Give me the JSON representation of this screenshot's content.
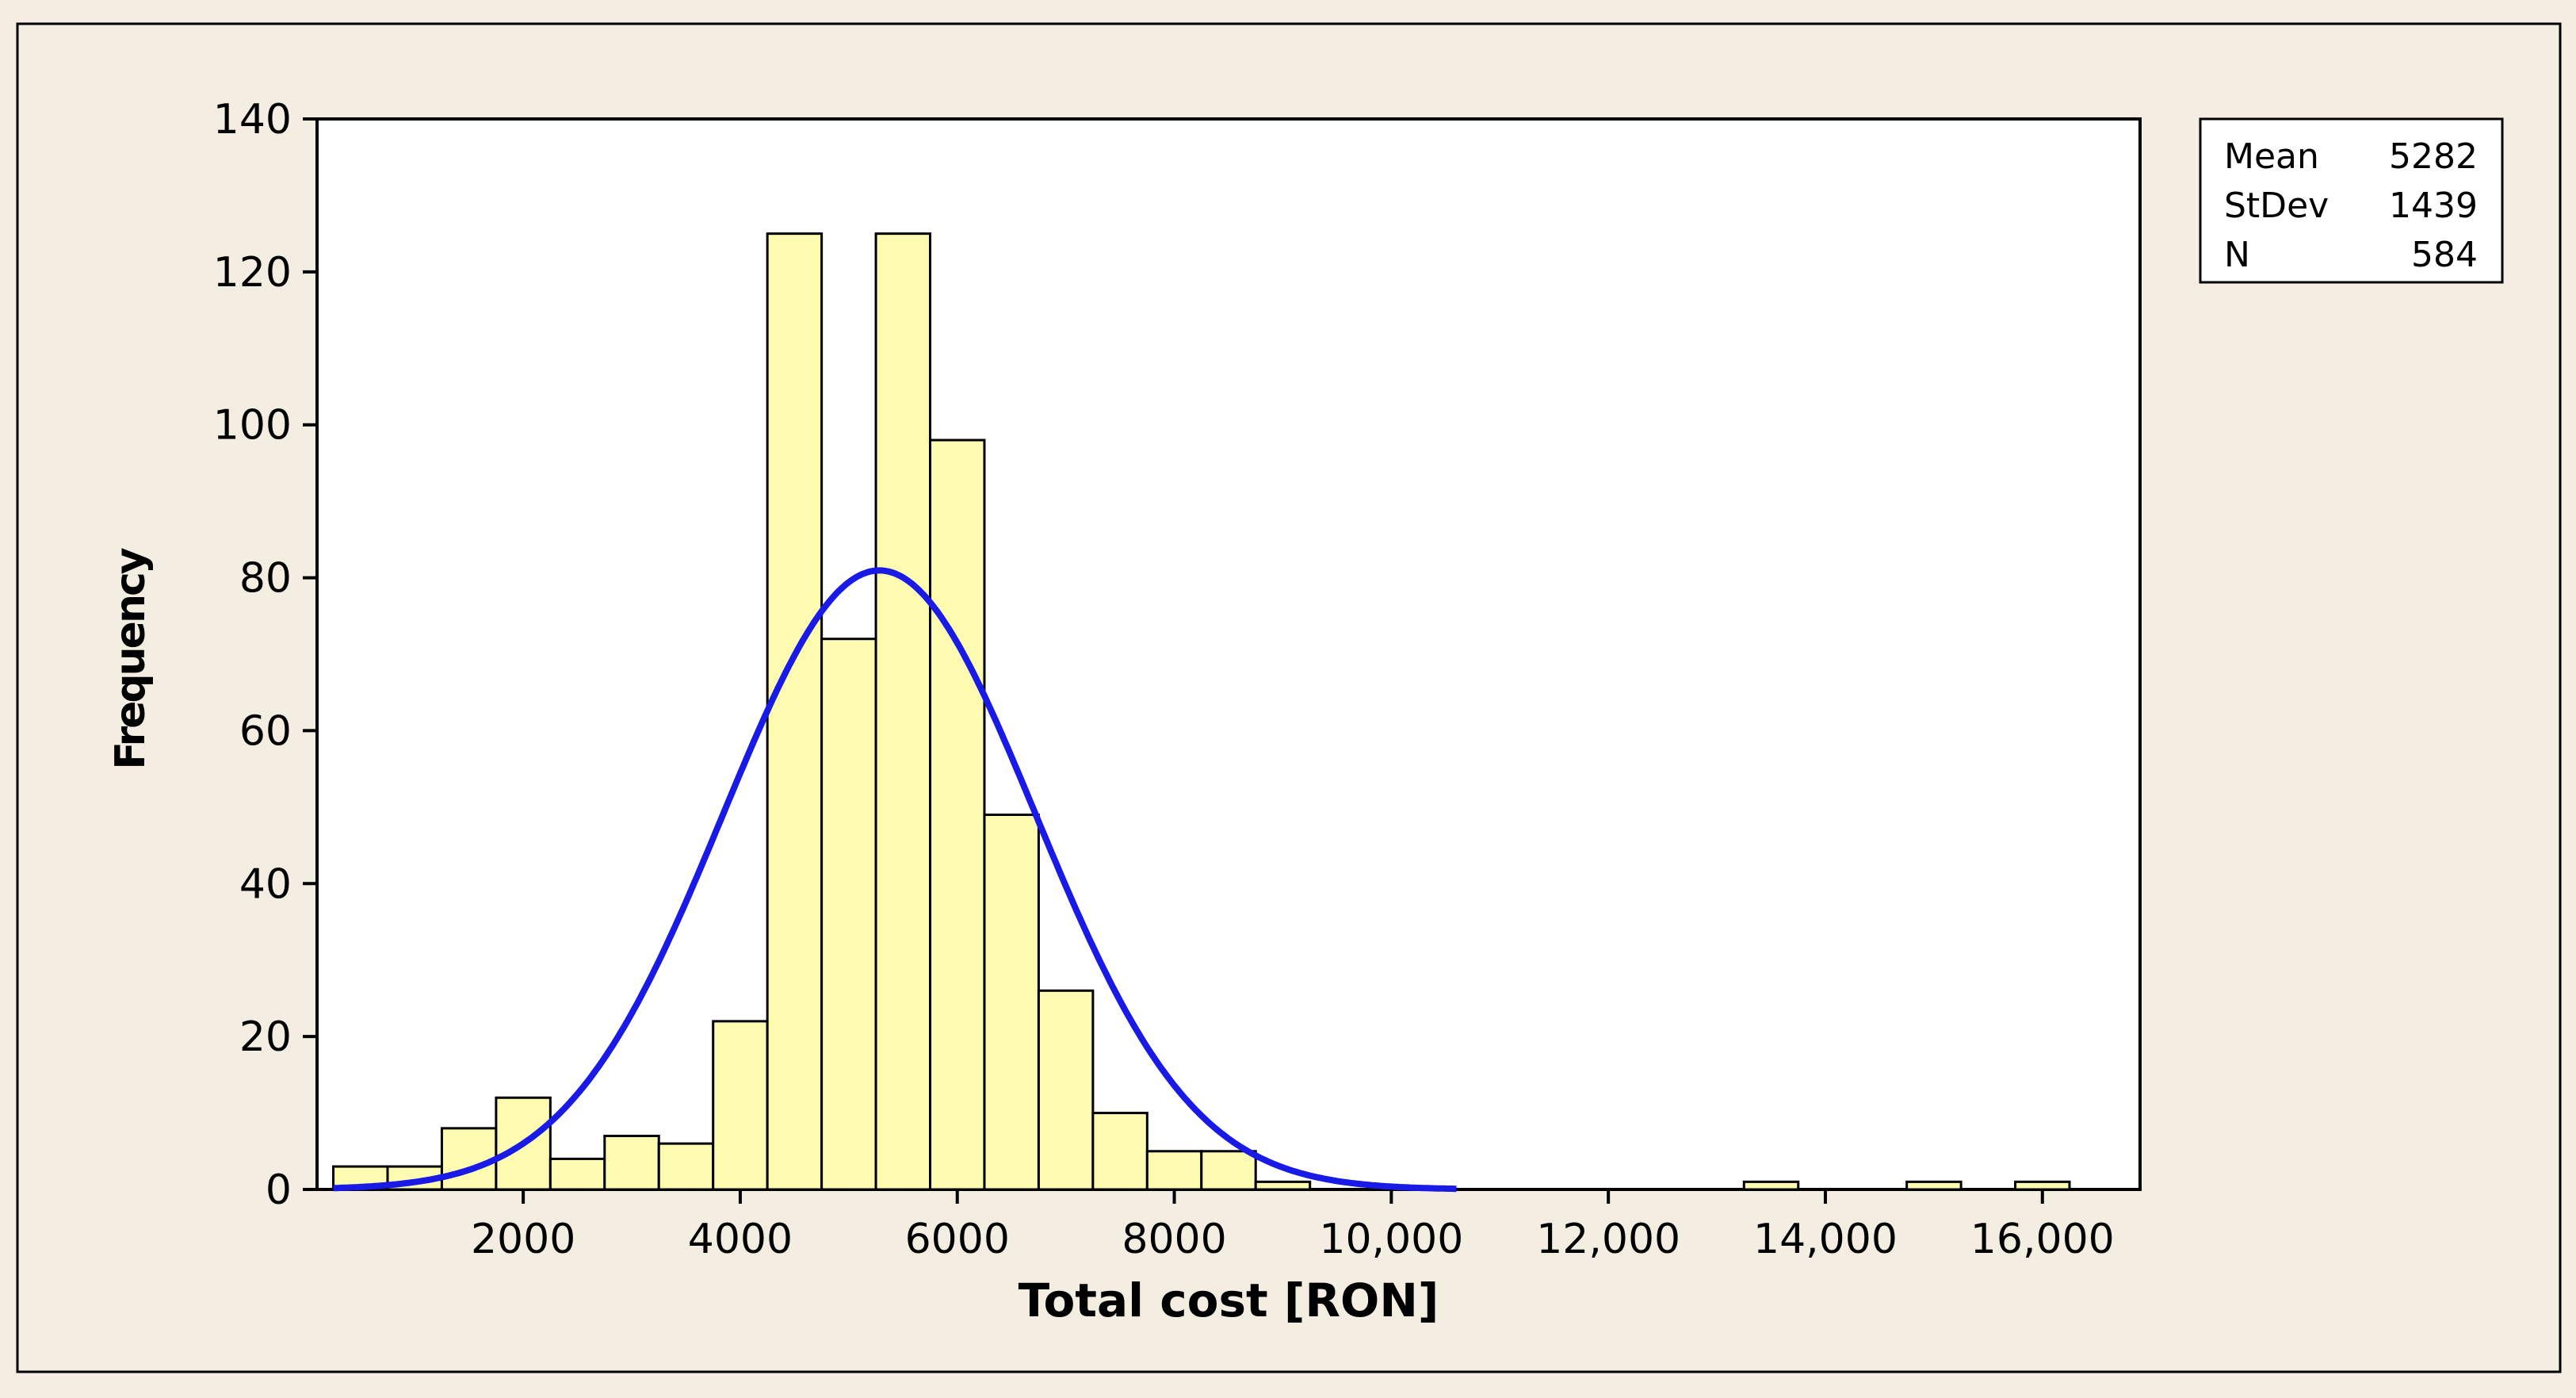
{
  "chart_data": {
    "type": "bar",
    "subtype": "histogram",
    "xlabel": "Total cost [RON]",
    "ylabel": "Frequency",
    "xlim": [
      100,
      16900
    ],
    "ylim": [
      0,
      140
    ],
    "x_ticks": [
      2000,
      4000,
      6000,
      8000,
      10000,
      12000,
      14000,
      16000
    ],
    "x_tick_labels": [
      "2000",
      "4000",
      "6000",
      "8000",
      "10,000",
      "12,000",
      "14,000",
      "16,000"
    ],
    "y_ticks": [
      0,
      20,
      40,
      60,
      80,
      100,
      120,
      140
    ],
    "y_tick_labels": [
      "0",
      "20",
      "40",
      "60",
      "80",
      "100",
      "120",
      "140"
    ],
    "bin_width": 500,
    "bins": [
      {
        "x0": 250,
        "x1": 750,
        "count": 3
      },
      {
        "x0": 750,
        "x1": 1250,
        "count": 3
      },
      {
        "x0": 1250,
        "x1": 1750,
        "count": 8
      },
      {
        "x0": 1750,
        "x1": 2250,
        "count": 12
      },
      {
        "x0": 2250,
        "x1": 2750,
        "count": 4
      },
      {
        "x0": 2750,
        "x1": 3250,
        "count": 7
      },
      {
        "x0": 3250,
        "x1": 3750,
        "count": 6
      },
      {
        "x0": 3750,
        "x1": 4250,
        "count": 22
      },
      {
        "x0": 4250,
        "x1": 4750,
        "count": 125
      },
      {
        "x0": 4750,
        "x1": 5250,
        "count": 72
      },
      {
        "x0": 5250,
        "x1": 5750,
        "count": 125
      },
      {
        "x0": 5750,
        "x1": 6250,
        "count": 98
      },
      {
        "x0": 6250,
        "x1": 6750,
        "count": 49
      },
      {
        "x0": 6750,
        "x1": 7250,
        "count": 26
      },
      {
        "x0": 7250,
        "x1": 7750,
        "count": 10
      },
      {
        "x0": 7750,
        "x1": 8250,
        "count": 5
      },
      {
        "x0": 8250,
        "x1": 8750,
        "count": 5
      },
      {
        "x0": 8750,
        "x1": 9250,
        "count": 1
      },
      {
        "x0": 13250,
        "x1": 13750,
        "count": 1
      },
      {
        "x0": 14750,
        "x1": 15250,
        "count": 1
      },
      {
        "x0": 15750,
        "x1": 16250,
        "count": 1
      }
    ],
    "normal_fit": {
      "mean": 5282,
      "stdev": 1439,
      "n": 584,
      "x_range": [
        250,
        10600
      ]
    },
    "colors": {
      "bar_fill": "#fdfbb0",
      "bar_stroke": "#000000",
      "curve": "#1a1ae6",
      "plot_bg": "#ffffff",
      "page_bg": "#f3ede2"
    },
    "legend": {
      "placement": "top-right",
      "rows": [
        {
          "label": "Mean",
          "value": "5282"
        },
        {
          "label": "StDev",
          "value": "1439"
        },
        {
          "label": "N",
          "value": "584"
        }
      ]
    },
    "grid": false
  }
}
